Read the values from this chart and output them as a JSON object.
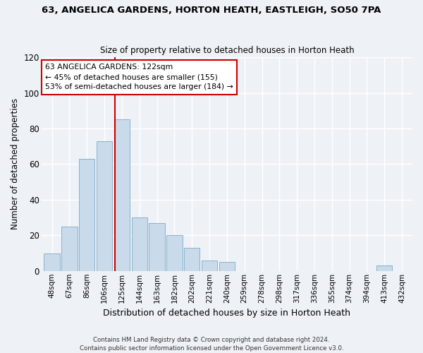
{
  "title": "63, ANGELICA GARDENS, HORTON HEATH, EASTLEIGH, SO50 7PA",
  "subtitle": "Size of property relative to detached houses in Horton Heath",
  "xlabel": "Distribution of detached houses by size in Horton Heath",
  "ylabel": "Number of detached properties",
  "bar_color": "#c9daea",
  "bar_edge_color": "#7aaac8",
  "bar_categories": [
    "48sqm",
    "67sqm",
    "86sqm",
    "106sqm",
    "125sqm",
    "144sqm",
    "163sqm",
    "182sqm",
    "202sqm",
    "221sqm",
    "240sqm",
    "259sqm",
    "278sqm",
    "298sqm",
    "317sqm",
    "336sqm",
    "355sqm",
    "374sqm",
    "394sqm",
    "413sqm",
    "432sqm"
  ],
  "bar_values": [
    10,
    25,
    63,
    73,
    85,
    30,
    27,
    20,
    13,
    6,
    5,
    0,
    0,
    0,
    0,
    0,
    0,
    0,
    0,
    3,
    0
  ],
  "vline_color": "#cc0000",
  "vline_index": 3.62,
  "annotation_text": "63 ANGELICA GARDENS: 122sqm\n← 45% of detached houses are smaller (155)\n53% of semi-detached houses are larger (184) →",
  "annotation_box_color": "#ffffff",
  "annotation_box_edge": "#cc0000",
  "ylim": [
    0,
    120
  ],
  "yticks": [
    0,
    20,
    40,
    60,
    80,
    100,
    120
  ],
  "footer1": "Contains HM Land Registry data © Crown copyright and database right 2024.",
  "footer2": "Contains public sector information licensed under the Open Government Licence v3.0.",
  "background_color": "#eef2f7",
  "grid_color": "#ffffff"
}
